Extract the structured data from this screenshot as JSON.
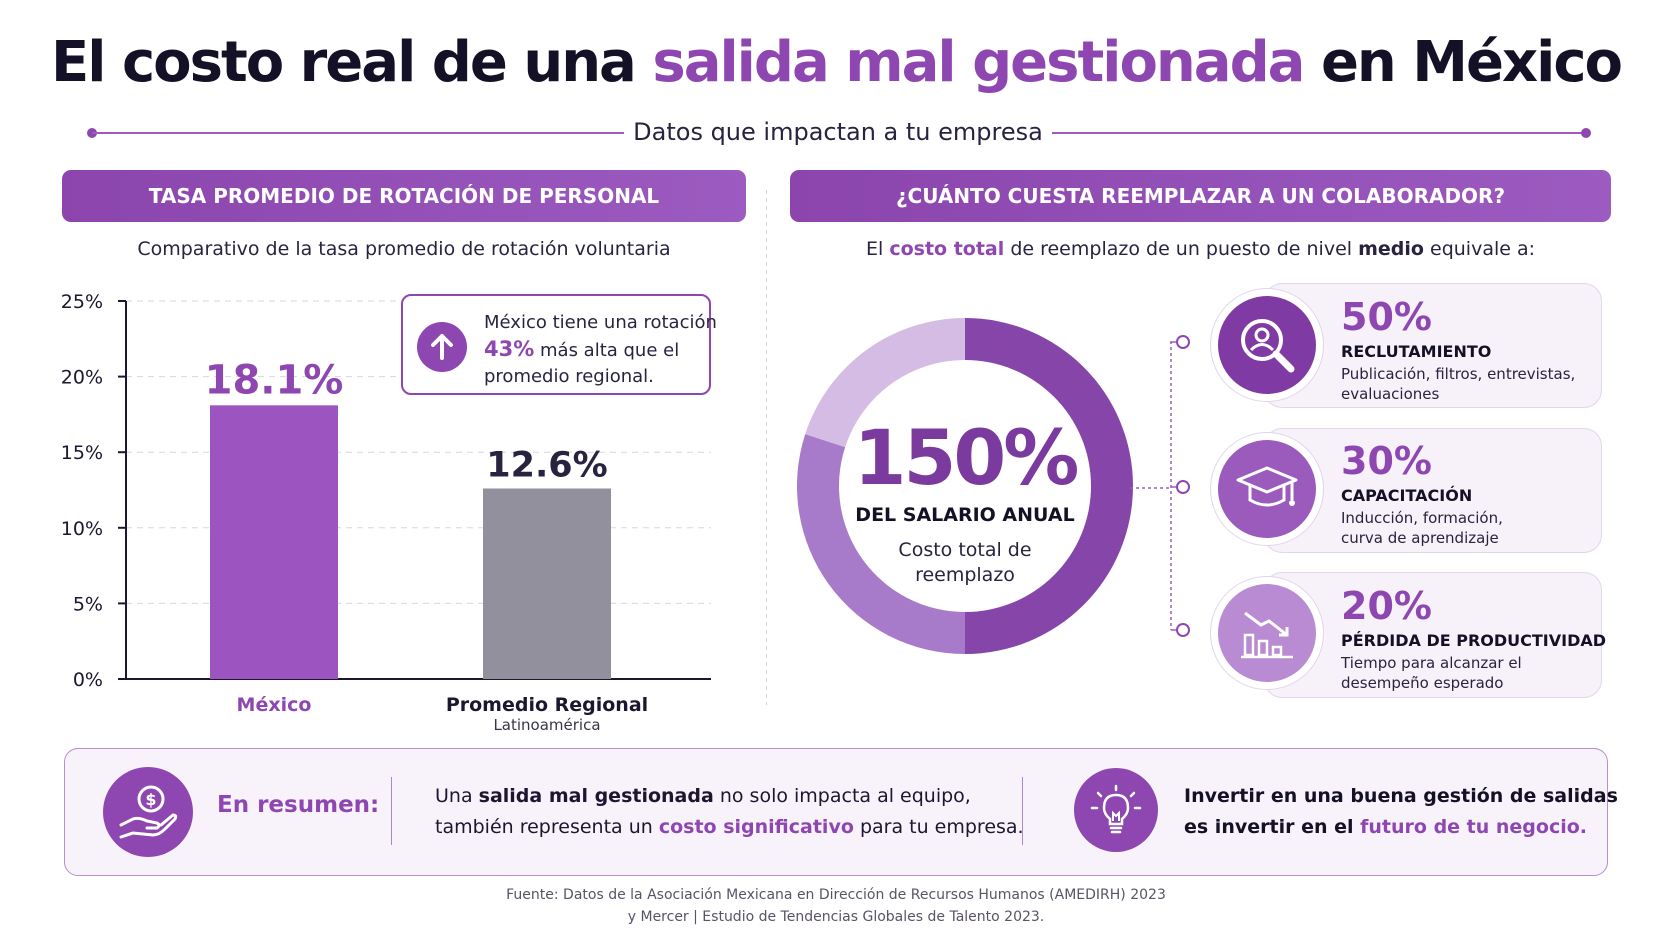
{
  "header": {
    "title_pre": "El costo real de una",
    "title_accent": "salida mal gestionada",
    "title_post": "en México",
    "subtitle": "Datos que impactan a tu empresa"
  },
  "left_panel": {
    "banner": "TASA PROMEDIO DE ROTACIÓN DE PERSONAL",
    "subtitle": "Comparativo de la tasa promedio de rotación voluntaria",
    "callout": {
      "icon": "arrow-up-icon",
      "line1": "México tiene una rotación",
      "highlight": "43%",
      "line2_rest": "más alta que el",
      "line3": "promedio regional."
    }
  },
  "chart_data": {
    "type": "bar",
    "categories": [
      "México",
      "Promedio Regional"
    ],
    "category_sublabels": [
      "",
      "Latinoamérica"
    ],
    "values": [
      18.1,
      12.6
    ],
    "value_labels": [
      "18.1%",
      "12.6%"
    ],
    "bar_colors": [
      "#9c55c0",
      "#92909c"
    ],
    "category_label_colors": [
      "#8e47b0",
      "#1c1630"
    ],
    "value_label_colors": [
      "#8e47b0",
      "#2a2340"
    ],
    "yticks": [
      "0%",
      "5%",
      "10%",
      "15%",
      "20%",
      "25%"
    ],
    "ytick_values": [
      0,
      5,
      10,
      15,
      20,
      25
    ],
    "ylim": [
      0,
      25
    ],
    "grid": true
  },
  "right_panel": {
    "banner": "¿CUÁNTO CUESTA REEMPLAZAR A UN COLABORADOR?",
    "subtitle_pre": "El",
    "subtitle_bold1": "costo total",
    "subtitle_mid": "de reemplazo de un puesto de nivel",
    "subtitle_bold2": "medio",
    "subtitle_post": "equivale a:",
    "donut": {
      "big": "150%",
      "label": "DEL SALARIO ANUAL",
      "desc_line1": "Costo total de",
      "desc_line2": "reemplazo",
      "segments": [
        {
          "value": 50,
          "color": "#8545a9"
        },
        {
          "value": 30,
          "color": "#a77bc9"
        },
        {
          "value": 20,
          "color": "#d4bce4"
        }
      ]
    },
    "breakdown": [
      {
        "pct": "50%",
        "title": "RECLUTAMIENTO",
        "desc1": "Publicación, filtros, entrevistas,",
        "desc2": "evaluaciones",
        "icon": "search-person-icon"
      },
      {
        "pct": "30%",
        "title": "CAPACITACIÓN",
        "desc1": "Inducción, formación,",
        "desc2": "curva de aprendizaje",
        "icon": "graduation-cap-icon"
      },
      {
        "pct": "20%",
        "title": "PÉRDIDA DE PRODUCTIVIDAD",
        "desc1": "Tiempo para alcanzar el",
        "desc2": "desempeño esperado",
        "icon": "declining-chart-icon"
      }
    ]
  },
  "summary": {
    "icon": "money-hand-icon",
    "label": "En resumen:",
    "line1_pre": "Una",
    "line1_bold": "salida mal gestionada",
    "line1_post": "no solo impacta al equipo,",
    "line2_pre": "también representa un",
    "line2_bold": "costo significativo",
    "line2_post": "para tu empresa.",
    "right_icon": "lightbulb-icon",
    "right_line1": "Invertir en una buena gestión de salidas",
    "right_line2_pre": "es invertir en el",
    "right_line2_accent": "futuro de tu negocio."
  },
  "source": {
    "line1": "Fuente: Datos de la Asociación Mexicana en Dirección de Recursos Humanos (AMEDIRH) 2023",
    "line2": "y Mercer | Estudio de Tendencias Globales de Talento 2023."
  }
}
